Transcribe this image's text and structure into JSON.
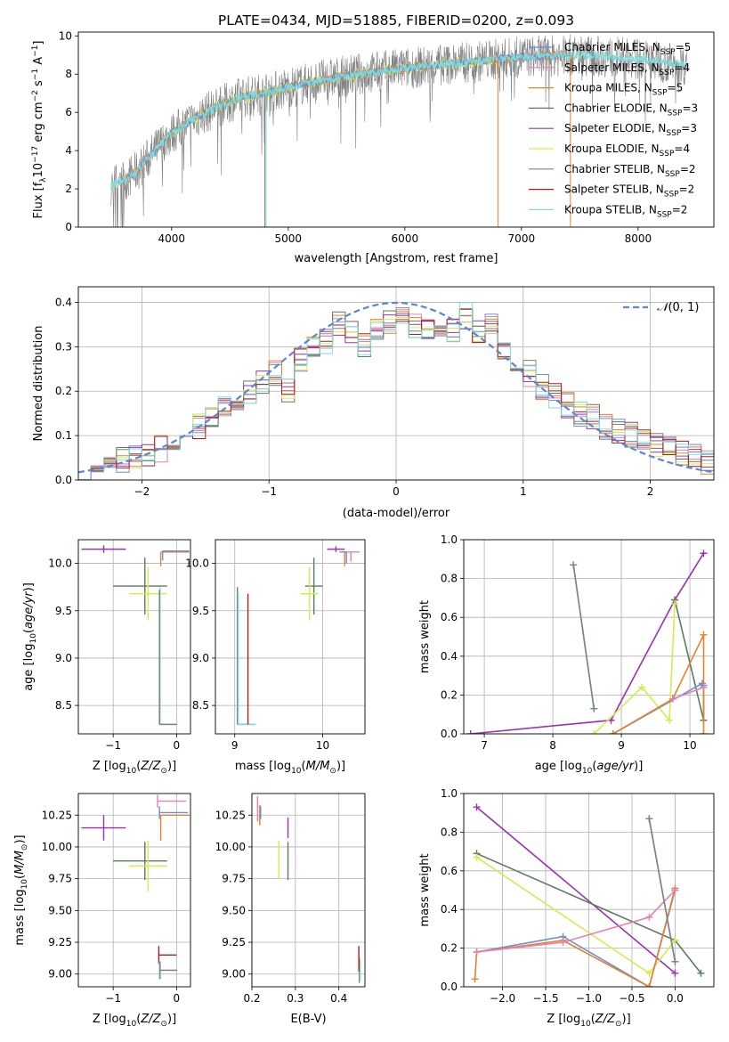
{
  "figure": {
    "title": "PLATE=0434, MJD=51885, FIBERID=0200, z=0.093"
  },
  "colors": {
    "chabrier_miles": "#6a8fd8",
    "salpeter_miles": "#e880b0",
    "kroupa_miles": "#e8822a",
    "chabrier_elodie": "#5a7d5a",
    "salpeter_elodie": "#9b30b8",
    "kroupa_elodie": "#d4ec4c",
    "chabrier_stelib": "#808080",
    "salpeter_stelib": "#b01c1c",
    "kroupa_stelib": "#80dcdc",
    "normal": "#5b86d8"
  },
  "chart_data": [
    {
      "id": "spectrum",
      "type": "line",
      "title": "PLATE=0434, MJD=51885, FIBERID=0200, z=0.093",
      "xlabel": "wavelength [Angstrom, rest frame]",
      "ylabel": "Flux [fλ10⁻¹⁷ erg cm⁻² s⁻¹ A⁻¹]",
      "xlim": [
        3200,
        8650
      ],
      "ylim": [
        0,
        10.2
      ],
      "xticks": [
        4000,
        5000,
        6000,
        7000,
        8000
      ],
      "yticks": [
        0,
        2,
        4,
        6,
        8,
        10
      ],
      "grid": false,
      "legend": "top-right",
      "legend_entries": [
        "Chabrier MILES, N_SSP=5",
        "Salpeter MILES, N_SSP=4",
        "Kroupa MILES, N_SSP=5",
        "Chabrier ELODIE, N_SSP=3",
        "Salpeter ELODIE, N_SSP=3",
        "Kroupa ELODIE, N_SSP=4",
        "Chabrier STELIB, N_SSP=2",
        "Salpeter STELIB, N_SSP=2",
        "Kroupa STELIB, N_SSP=2"
      ],
      "continuum": [
        [
          3480,
          2.2
        ],
        [
          3600,
          2.5
        ],
        [
          3700,
          2.9
        ],
        [
          3800,
          3.6
        ],
        [
          3900,
          4.3
        ],
        [
          4000,
          4.9
        ],
        [
          4200,
          5.7
        ],
        [
          4400,
          6.3
        ],
        [
          4600,
          6.8
        ],
        [
          4800,
          7.0
        ],
        [
          5000,
          7.3
        ],
        [
          5300,
          7.7
        ],
        [
          5600,
          8.0
        ],
        [
          6000,
          8.3
        ],
        [
          6500,
          8.6
        ],
        [
          7000,
          8.9
        ],
        [
          7500,
          9.0
        ],
        [
          8000,
          8.8
        ],
        [
          8400,
          8.5
        ]
      ]
    },
    {
      "id": "residuals",
      "type": "bar",
      "xlabel": "(data-model)/error",
      "ylabel": "Normed distribution",
      "xlim": [
        -2.5,
        2.5
      ],
      "ylim": [
        0,
        0.435
      ],
      "xticks": [
        -2,
        -1,
        0,
        1,
        2
      ],
      "yticks": [
        0.0,
        0.1,
        0.2,
        0.3,
        0.4
      ],
      "grid": true,
      "legend": "top-right",
      "legend_entries": [
        "𝒩(0, 1)"
      ],
      "bins": [
        -2.5,
        2.5,
        50
      ],
      "hist_base": [
        0.03,
        0.035,
        0.04,
        0.045,
        0.055,
        0.06,
        0.07,
        0.08,
        0.1,
        0.12,
        0.14,
        0.16,
        0.18,
        0.2,
        0.22,
        0.24,
        0.2,
        0.27,
        0.3,
        0.31,
        0.35,
        0.33,
        0.3,
        0.34,
        0.36,
        0.37,
        0.35,
        0.34,
        0.32,
        0.34,
        0.37,
        0.33,
        0.35,
        0.3,
        0.27,
        0.24,
        0.21,
        0.19,
        0.17,
        0.15,
        0.14,
        0.12,
        0.11,
        0.1,
        0.09,
        0.08,
        0.07,
        0.06,
        0.05,
        0.04
      ]
    },
    {
      "id": "age-vs-Z",
      "type": "scatter",
      "xlabel": "Z [log₁₀(Z/Z⊙)]",
      "ylabel": "age  [log₁₀(age/yr)]",
      "xlim": [
        -1.55,
        0.22
      ],
      "ylim": [
        8.2,
        10.25
      ],
      "xticks": [
        -1,
        0
      ],
      "yticks": [
        8.5,
        9.0,
        9.5,
        10.0
      ],
      "grid": true,
      "points": [
        {
          "series": "salpeter_elodie",
          "x": -1.15,
          "y": 10.15,
          "xerr": [
            0.35,
            0.35
          ],
          "yerr": [
            0.04,
            0.04
          ]
        },
        {
          "series": "chabrier_elodie",
          "x": -0.5,
          "y": 9.76,
          "xerr": [
            0.5,
            0.35
          ],
          "yerr": [
            0.3,
            0.3
          ]
        },
        {
          "series": "kroupa_elodie",
          "x": -0.45,
          "y": 9.68,
          "xerr": [
            0.3,
            0.3
          ],
          "yerr": [
            0.28,
            0.28
          ]
        },
        {
          "series": "kroupa_miles",
          "x": -0.25,
          "y": 10.12,
          "xerr": [
            0.0,
            0.45
          ],
          "yerr": [
            0.15,
            0.0
          ]
        },
        {
          "series": "chabrier_miles",
          "x": -0.22,
          "y": 10.13,
          "xerr": [
            0.0,
            0.42
          ],
          "yerr": [
            0.1,
            0.0
          ]
        },
        {
          "series": "kroupa_stelib",
          "x": -0.26,
          "y": 8.3,
          "xerr": [
            0.0,
            0.28
          ],
          "yerr": [
            0.0,
            1.45
          ]
        },
        {
          "series": "chabrier_stelib",
          "x": -0.27,
          "y": 8.3,
          "xerr": [
            0.0,
            0.27
          ],
          "yerr": [
            0.0,
            1.42
          ]
        }
      ]
    },
    {
      "id": "age-vs-mass",
      "type": "scatter",
      "xlabel": "mass [log₁₀(M/M⊙)]",
      "ylabel": "",
      "xlim": [
        8.78,
        10.48
      ],
      "ylim": [
        8.2,
        10.25
      ],
      "xticks": [
        9,
        10
      ],
      "yticks": [
        8.5,
        9.0,
        9.5,
        10.0
      ],
      "grid": true,
      "points": [
        {
          "series": "chabrier_stelib",
          "x": 9.03,
          "y": 8.3,
          "xerr": [
            0.0,
            0.2
          ],
          "yerr": [
            0.0,
            1.45
          ]
        },
        {
          "series": "kroupa_stelib",
          "x": 9.04,
          "y": 8.3,
          "xerr": [
            0.0,
            0.2
          ],
          "yerr": [
            0.0,
            1.4
          ]
        },
        {
          "series": "salpeter_stelib",
          "x": 9.15,
          "y": 8.3,
          "xerr": [
            0.0,
            0.0
          ],
          "yerr": [
            0.0,
            1.38
          ]
        },
        {
          "series": "chabrier_elodie",
          "x": 9.9,
          "y": 9.76,
          "xerr": [
            0.1,
            0.1
          ],
          "yerr": [
            0.3,
            0.3
          ]
        },
        {
          "series": "kroupa_elodie",
          "x": 9.85,
          "y": 9.68,
          "xerr": [
            0.1,
            0.1
          ],
          "yerr": [
            0.28,
            0.28
          ]
        },
        {
          "series": "salpeter_elodie",
          "x": 10.15,
          "y": 10.15,
          "xerr": [
            0.1,
            0.1
          ],
          "yerr": [
            0.03,
            0.03
          ]
        },
        {
          "series": "salpeter_miles",
          "x": 10.32,
          "y": 10.12,
          "xerr": [
            0.1,
            0.1
          ],
          "yerr": [
            0.1,
            0.0
          ]
        },
        {
          "series": "kroupa_miles",
          "x": 10.25,
          "y": 10.12,
          "xerr": [
            0.06,
            0.0
          ],
          "yerr": [
            0.15,
            0.0
          ]
        },
        {
          "series": "chabrier_miles",
          "x": 10.27,
          "y": 10.12,
          "xerr": [
            0.06,
            0.0
          ],
          "yerr": [
            0.12,
            0.0
          ]
        }
      ]
    },
    {
      "id": "weight-vs-age",
      "type": "line",
      "xlabel": "age  [log₁₀(age/yr)]",
      "ylabel": "mass weight",
      "xlim": [
        6.7,
        10.35
      ],
      "ylim": [
        0.0,
        1.0
      ],
      "xticks": [
        7,
        8,
        9,
        10
      ],
      "yticks": [
        0.0,
        0.2,
        0.4,
        0.6,
        0.8,
        1.0
      ],
      "grid": true,
      "series": [
        {
          "key": "salpeter_elodie",
          "points": [
            [
              6.8,
              0.0
            ],
            [
              8.85,
              0.07
            ],
            [
              9.78,
              0.69
            ],
            [
              10.2,
              0.93
            ]
          ]
        },
        {
          "key": "chabrier_elodie",
          "points": [
            [
              9.78,
              0.69
            ],
            [
              10.2,
              0.07
            ],
            [
              10.2,
              0.24
            ]
          ]
        },
        {
          "key": "kroupa_elodie",
          "points": [
            [
              8.6,
              0.0
            ],
            [
              9.3,
              0.24
            ],
            [
              9.7,
              0.07
            ],
            [
              9.78,
              0.67
            ]
          ]
        },
        {
          "key": "chabrier_miles",
          "points": [
            [
              8.88,
              0.0
            ],
            [
              10.18,
              0.26
            ],
            [
              10.2,
              0.25
            ]
          ]
        },
        {
          "key": "kroupa_miles",
          "points": [
            [
              8.88,
              0.0
            ],
            [
              9.75,
              0.18
            ],
            [
              10.2,
              0.51
            ],
            [
              10.2,
              0.0
            ]
          ]
        },
        {
          "key": "salpeter_miles",
          "points": [
            [
              9.75,
              0.18
            ],
            [
              10.2,
              0.24
            ]
          ]
        },
        {
          "key": "kroupa_stelib",
          "points": [
            [
              8.3,
              0.87
            ],
            [
              8.6,
              0.13
            ]
          ]
        },
        {
          "key": "chabrier_stelib",
          "points": [
            [
              8.3,
              0.87
            ],
            [
              8.6,
              0.13
            ]
          ]
        }
      ]
    },
    {
      "id": "mass-vs-Z",
      "type": "scatter",
      "xlabel": "Z [log₁₀(Z/Z⊙)]",
      "ylabel": "mass [log₁₀(M/M⊙)]",
      "xlim": [
        -1.55,
        0.22
      ],
      "ylim": [
        8.9,
        10.42
      ],
      "xticks": [
        -1,
        0
      ],
      "yticks": [
        9.0,
        9.25,
        9.5,
        9.75,
        10.0,
        10.25
      ],
      "grid": true,
      "points": [
        {
          "series": "salpeter_elodie",
          "x": -1.15,
          "y": 10.15,
          "xerr": [
            0.35,
            0.35
          ],
          "yerr": [
            0.1,
            0.1
          ]
        },
        {
          "series": "chabrier_elodie",
          "x": -0.5,
          "y": 9.89,
          "xerr": [
            0.5,
            0.35
          ],
          "yerr": [
            0.15,
            0.15
          ]
        },
        {
          "series": "kroupa_elodie",
          "x": -0.45,
          "y": 9.85,
          "xerr": [
            0.3,
            0.3
          ],
          "yerr": [
            0.2,
            0.2
          ]
        },
        {
          "series": "salpeter_miles",
          "x": -0.3,
          "y": 10.36,
          "xerr": [
            0.0,
            0.45
          ],
          "yerr": [
            0.05,
            0.05
          ]
        },
        {
          "series": "chabrier_miles",
          "x": -0.27,
          "y": 10.27,
          "xerr": [
            0.0,
            0.45
          ],
          "yerr": [
            0.05,
            0.05
          ]
        },
        {
          "series": "kroupa_miles",
          "x": -0.25,
          "y": 10.25,
          "xerr": [
            0.0,
            0.45
          ],
          "yerr": [
            0.2,
            0.0
          ]
        },
        {
          "series": "salpeter_stelib",
          "x": -0.28,
          "y": 9.15,
          "xerr": [
            0.0,
            0.28
          ],
          "yerr": [
            0.07,
            0.07
          ]
        },
        {
          "series": "kroupa_stelib",
          "x": -0.27,
          "y": 9.03,
          "xerr": [
            0.0,
            0.27
          ],
          "yerr": [
            0.07,
            0.07
          ]
        },
        {
          "series": "chabrier_stelib",
          "x": -0.26,
          "y": 9.03,
          "xerr": [
            0.0,
            0.27
          ],
          "yerr": [
            0.07,
            0.07
          ]
        }
      ]
    },
    {
      "id": "mass-vs-EBV",
      "type": "scatter",
      "xlabel": "E(B-V)",
      "ylabel": "",
      "xlim": [
        0.2,
        0.46
      ],
      "ylim": [
        8.9,
        10.42
      ],
      "xticks": [
        0.2,
        0.3,
        0.4
      ],
      "yticks": [
        9.0,
        9.25,
        9.5,
        9.75,
        10.0,
        10.25
      ],
      "grid": true,
      "points": [
        {
          "series": "salpeter_miles",
          "x": 0.213,
          "y": 10.3,
          "xerr": [
            0,
            0
          ],
          "yerr": [
            0.1,
            0.1
          ]
        },
        {
          "series": "kroupa_miles",
          "x": 0.218,
          "y": 10.25,
          "xerr": [
            0,
            0
          ],
          "yerr": [
            0.08,
            0.08
          ]
        },
        {
          "series": "chabrier_miles",
          "x": 0.22,
          "y": 10.27,
          "xerr": [
            0,
            0
          ],
          "yerr": [
            0.05,
            0.05
          ]
        },
        {
          "series": "salpeter_elodie",
          "x": 0.283,
          "y": 10.15,
          "xerr": [
            0,
            0
          ],
          "yerr": [
            0.08,
            0.08
          ]
        },
        {
          "series": "kroupa_elodie",
          "x": 0.262,
          "y": 9.9,
          "xerr": [
            0,
            0
          ],
          "yerr": [
            0.15,
            0.15
          ]
        },
        {
          "series": "chabrier_elodie",
          "x": 0.283,
          "y": 9.89,
          "xerr": [
            0,
            0
          ],
          "yerr": [
            0.15,
            0.15
          ]
        },
        {
          "series": "chabrier_stelib",
          "x": 0.447,
          "y": 9.03,
          "xerr": [
            0,
            0
          ],
          "yerr": [
            0.1,
            0.1
          ]
        },
        {
          "series": "kroupa_stelib",
          "x": 0.449,
          "y": 9.03,
          "xerr": [
            0,
            0
          ],
          "yerr": [
            0.08,
            0.08
          ]
        },
        {
          "series": "salpeter_stelib",
          "x": 0.446,
          "y": 9.12,
          "xerr": [
            0,
            0
          ],
          "yerr": [
            0.1,
            0.1
          ]
        }
      ]
    },
    {
      "id": "weight-vs-Z",
      "type": "line",
      "xlabel": "Z [log₁₀(Z/Z⊙)]",
      "ylabel": "mass weight",
      "xlim": [
        -2.45,
        0.45
      ],
      "ylim": [
        0.0,
        1.0
      ],
      "xticks": [
        -2.0,
        -1.5,
        -1.0,
        -0.5,
        0.0
      ],
      "yticks": [
        0.0,
        0.2,
        0.4,
        0.6,
        0.8,
        1.0
      ],
      "grid": true,
      "series": [
        {
          "key": "salpeter_elodie",
          "points": [
            [
              -2.3,
              0.93
            ],
            [
              0.0,
              0.07
            ]
          ]
        },
        {
          "key": "chabrier_elodie",
          "points": [
            [
              -2.3,
              0.69
            ],
            [
              0.0,
              0.24
            ],
            [
              0.3,
              0.07
            ]
          ]
        },
        {
          "key": "kroupa_elodie",
          "points": [
            [
              -2.3,
              0.67
            ],
            [
              -0.3,
              0.07
            ],
            [
              0.0,
              0.24
            ]
          ]
        },
        {
          "key": "chabrier_miles",
          "points": [
            [
              -2.3,
              0.18
            ],
            [
              -1.3,
              0.26
            ],
            [
              -0.3,
              0.0
            ],
            [
              0.0,
              0.5
            ]
          ]
        },
        {
          "key": "kroupa_miles",
          "points": [
            [
              -2.32,
              0.04
            ],
            [
              -2.3,
              0.18
            ],
            [
              -1.3,
              0.24
            ],
            [
              -0.3,
              0.0
            ],
            [
              0.0,
              0.51
            ]
          ]
        },
        {
          "key": "salpeter_miles",
          "points": [
            [
              -2.3,
              0.18
            ],
            [
              -1.3,
              0.23
            ],
            [
              -0.3,
              0.36
            ],
            [
              0.0,
              0.5
            ]
          ]
        },
        {
          "key": "kroupa_stelib",
          "points": [
            [
              -0.3,
              0.87
            ],
            [
              0.0,
              0.13
            ]
          ]
        },
        {
          "key": "chabrier_stelib",
          "points": [
            [
              -0.3,
              0.87
            ],
            [
              0.0,
              0.13
            ]
          ]
        }
      ]
    }
  ]
}
